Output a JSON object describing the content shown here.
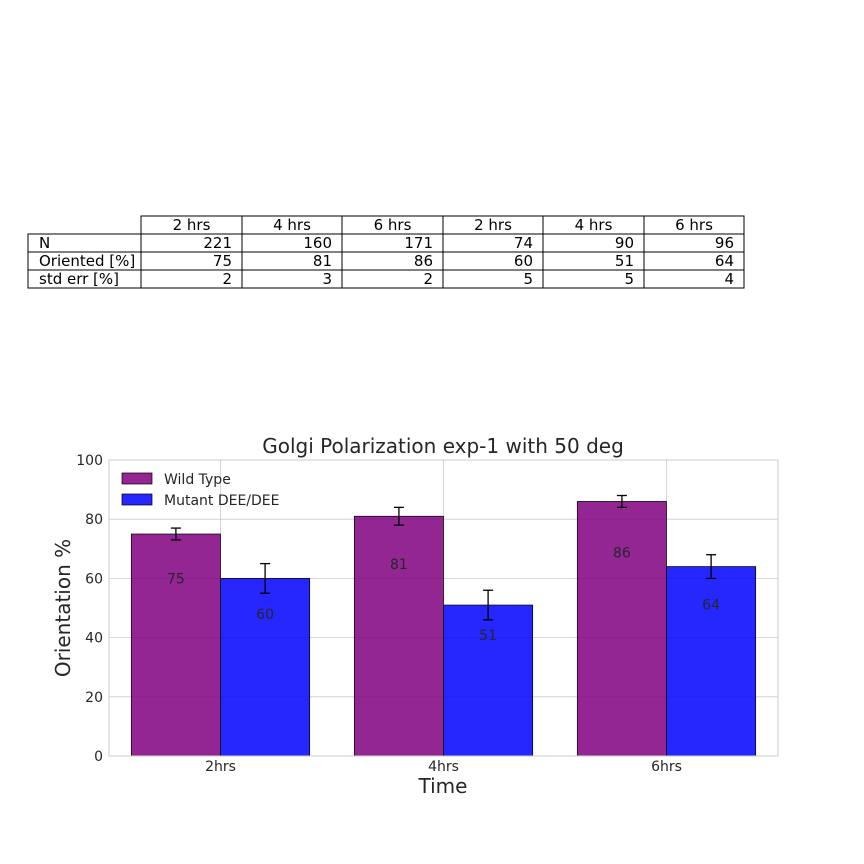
{
  "table": {
    "col_headers": [
      "2 hrs",
      "4 hrs",
      "6 hrs",
      "2 hrs",
      "4 hrs",
      "6 hrs"
    ],
    "rows": [
      {
        "label": "N",
        "values": [
          "221",
          "160",
          "171",
          "74",
          "90",
          "96"
        ]
      },
      {
        "label": "Oriented [%]",
        "values": [
          "75",
          "81",
          "86",
          "60",
          "51",
          "64"
        ]
      },
      {
        "label": "std err [%]",
        "values": [
          "2",
          "3",
          "2",
          "5",
          "5",
          "4"
        ]
      }
    ]
  },
  "chart_data": {
    "type": "bar",
    "title": "Golgi Polarization exp-1 with 50 deg",
    "xlabel": "Time",
    "ylabel": "Orientation %",
    "categories": [
      "2hrs",
      "4hrs",
      "6hrs"
    ],
    "ylim": [
      0,
      100
    ],
    "yticks": [
      0,
      20,
      40,
      60,
      80,
      100
    ],
    "grid": true,
    "legend_position": "top-left",
    "series": [
      {
        "name": "Wild Type",
        "values": [
          75,
          81,
          86
        ],
        "errors": [
          2,
          3,
          2
        ],
        "labels": [
          "75",
          "81",
          "86"
        ],
        "color": "#800080"
      },
      {
        "name": "Mutant DEE/DEE",
        "values": [
          60,
          51,
          64
        ],
        "errors": [
          5,
          5,
          4
        ],
        "labels": [
          "60",
          "51",
          "64"
        ],
        "color": "#0000ff"
      }
    ]
  }
}
